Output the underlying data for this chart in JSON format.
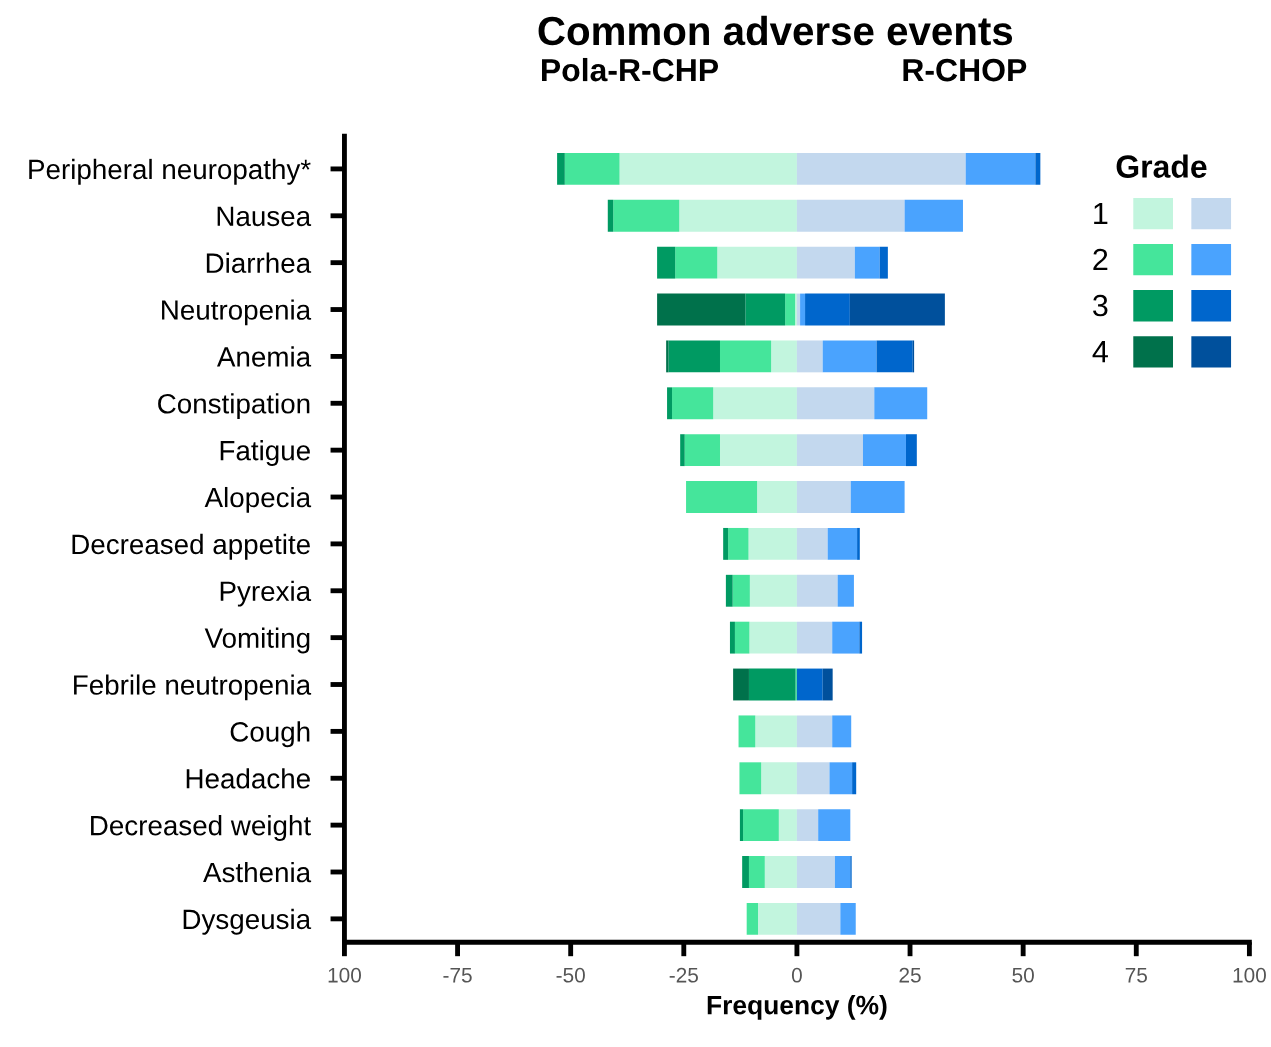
{
  "chart_data": {
    "type": "bar",
    "orientation": "horizontal",
    "stacked": true,
    "title": "Common adverse events",
    "xlabel": "Frequency (%)",
    "legend_title": "Grade",
    "annotations": [
      "Pola-R-CHP",
      "R-CHOP"
    ],
    "categories": [
      "Peripheral neuropathy*",
      "Nausea",
      "Diarrhea",
      "Neutropenia",
      "Anemia",
      "Constipation",
      "Fatigue",
      "Alopecia",
      "Decreased appetite",
      "Pyrexia",
      "Vomiting",
      "Febrile neutropenia",
      "Cough",
      "Headache",
      "Decreased weight",
      "Asthenia",
      "Dysgeusia"
    ],
    "series": [
      {
        "name": "1",
        "color": "#c2f5de",
        "values": [
          -39.2,
          -26.0,
          -17.6,
          -0.4,
          -5.7,
          -18.5,
          -17.0,
          -8.8,
          -10.7,
          -10.4,
          -10.5,
          0,
          -9.2,
          -7.9,
          -4.0,
          -7.1,
          -8.6
        ]
      },
      {
        "name": "2",
        "color": "#45e59b",
        "values": [
          -12.1,
          -14.6,
          -9.3,
          -2.2,
          -11.3,
          -9.1,
          -7.8,
          -15.7,
          -4.5,
          -3.8,
          -3.2,
          -0.3,
          -3.7,
          -4.8,
          -7.9,
          -3.5,
          -2.5
        ]
      },
      {
        "name": "3",
        "color": "#009a62",
        "values": [
          -1.7,
          -1.2,
          -4.0,
          -8.8,
          -11.4,
          -1.1,
          -1.0,
          0,
          -1.1,
          -1.5,
          -1.1,
          -10.3,
          0,
          0,
          -0.7,
          -1.5,
          0
        ]
      },
      {
        "name": "4",
        "color": "#00714b",
        "values": [
          0,
          0,
          0,
          -19.5,
          -0.5,
          0,
          0,
          0,
          0,
          0,
          0,
          -3.5,
          0,
          0,
          0,
          0,
          0
        ]
      },
      {
        "color": "#c3d8ee",
        "values": [
          37.3,
          23.8,
          12.8,
          0.7,
          5.7,
          17.1,
          14.6,
          11.9,
          6.8,
          9.0,
          7.8,
          0,
          7.8,
          7.2,
          4.7,
          8.4,
          9.6
        ]
      },
      {
        "color": "#4aa3fe",
        "values": [
          15.4,
          12.9,
          5.5,
          1.1,
          11.9,
          11.7,
          9.5,
          11.9,
          6.5,
          3.6,
          6.0,
          0,
          4.2,
          5.0,
          7.1,
          3.4,
          3.4
        ]
      },
      {
        "color": "#0066cc",
        "values": [
          1.1,
          0,
          1.8,
          9.9,
          8.0,
          0,
          2.4,
          0,
          0.6,
          0,
          0.6,
          5.7,
          0,
          0.9,
          0,
          0.3,
          0
        ]
      },
      {
        "color": "#00509c",
        "values": [
          0,
          0,
          0,
          21.0,
          0.3,
          0,
          0,
          0,
          0,
          0,
          0,
          2.2,
          0,
          0,
          0,
          0,
          0
        ]
      }
    ],
    "xlim": [
      -100,
      100
    ],
    "xticks": [
      {
        "value": -100,
        "label": "100"
      },
      -75,
      -50,
      -25,
      0,
      25,
      50,
      75,
      100
    ],
    "legend": "top right",
    "grid": false
  }
}
